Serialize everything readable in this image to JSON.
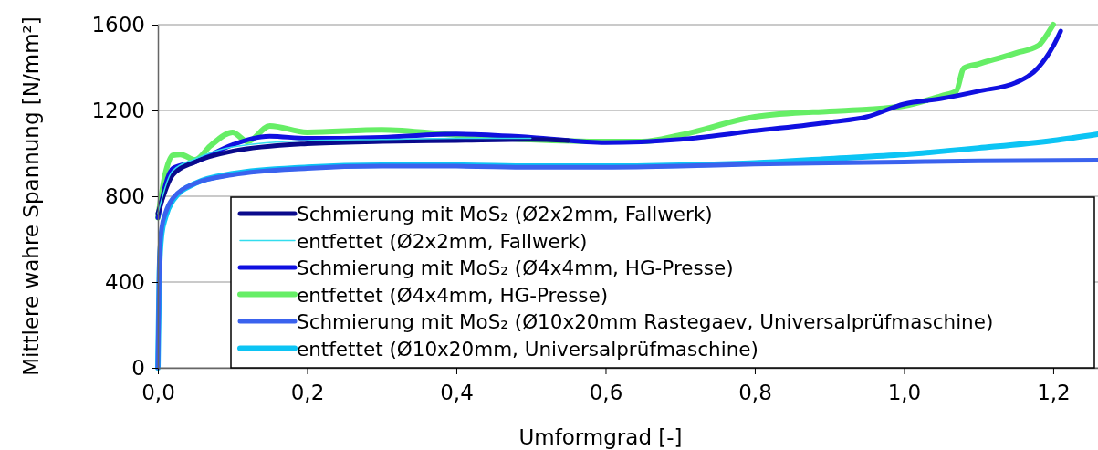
{
  "chart_data": {
    "type": "line",
    "xlabel": "Umformgrad [-]",
    "ylabel": "Mittlere wahre Spannung [N/mm²]",
    "xlim": [
      0,
      1.26
    ],
    "ylim": [
      0,
      1600
    ],
    "xticks": [
      {
        "value": 0,
        "label": "0,0"
      },
      {
        "value": 0.2,
        "label": "0,2"
      },
      {
        "value": 0.4,
        "label": "0,4"
      },
      {
        "value": 0.6,
        "label": "0,6"
      },
      {
        "value": 0.8,
        "label": "0,8"
      },
      {
        "value": 1.0,
        "label": "1,0"
      },
      {
        "value": 1.2,
        "label": "1,2"
      }
    ],
    "yticks": [
      0,
      400,
      800,
      1200,
      1600
    ],
    "grid": "y",
    "legend": "bottom right",
    "marker": "none",
    "line_style": "solid",
    "series": [
      {
        "name": "Schmierung mit MoS₂ (Ø2x2mm, Fallwerk)",
        "color": "#0a0a8c",
        "x": [
          0,
          0.02,
          0.05,
          0.1,
          0.2,
          0.3,
          0.4,
          0.5,
          0.55
        ],
        "values": [
          720,
          900,
          960,
          1010,
          1045,
          1055,
          1060,
          1065,
          1060
        ]
      },
      {
        "name": "entfettet (Ø2x2mm, Fallwerk)",
        "color": "#33ddee",
        "x": [
          0,
          0.02,
          0.05,
          0.1,
          0.2,
          0.3,
          0.4,
          0.5
        ],
        "values": [
          720,
          920,
          975,
          1030,
          1060,
          1065,
          1070,
          1070
        ]
      },
      {
        "name": "Schmierung mit MoS₂ (Ø4x4mm, HG-Presse)",
        "color": "#1010e0",
        "x": [
          0,
          0.02,
          0.05,
          0.1,
          0.15,
          0.2,
          0.3,
          0.4,
          0.5,
          0.6,
          0.7,
          0.8,
          0.9,
          0.95,
          1.0,
          1.05,
          1.1,
          1.15,
          1.18,
          1.2,
          1.21
        ],
        "values": [
          700,
          930,
          960,
          1040,
          1080,
          1070,
          1075,
          1090,
          1075,
          1050,
          1065,
          1105,
          1145,
          1170,
          1230,
          1255,
          1290,
          1330,
          1400,
          1500,
          1570
        ]
      },
      {
        "name": "entfettet (Ø4x4mm, HG-Presse)",
        "color": "#66ee66",
        "x": [
          0,
          0.01,
          0.02,
          0.03,
          0.05,
          0.07,
          0.1,
          0.12,
          0.15,
          0.2,
          0.3,
          0.4,
          0.5,
          0.6,
          0.65,
          0.7,
          0.8,
          0.9,
          0.95,
          1.0,
          1.05,
          1.07,
          1.08,
          1.1,
          1.15,
          1.18,
          1.19,
          1.2
        ],
        "values": [
          700,
          906,
          991,
          995,
          970,
          1034,
          1098,
          1055,
          1128,
          1098,
          1110,
          1085,
          1064,
          1055,
          1055,
          1085,
          1170,
          1196,
          1204,
          1221,
          1268,
          1290,
          1396,
          1417,
          1468,
          1502,
          1545,
          1600
        ]
      },
      {
        "name": "Schmierung mit MoS₂ (Ø10x20mm Rastegaev, Universalprüfmaschine)",
        "color": "#3a62ee",
        "x": [
          0,
          0.002,
          0.005,
          0.01,
          0.02,
          0.05,
          0.1,
          0.2,
          0.3,
          0.4,
          0.5,
          0.6,
          0.7,
          0.8,
          0.9,
          1.0,
          1.1,
          1.26
        ],
        "values": [
          0,
          500,
          650,
          720,
          790,
          860,
          900,
          930,
          940,
          940,
          935,
          935,
          940,
          950,
          955,
          960,
          965,
          968
        ]
      },
      {
        "name": "entfettet (Ø10x20mm, Universalprüfmaschine)",
        "color": "#0cc4f4",
        "x": [
          0,
          0.002,
          0.005,
          0.01,
          0.02,
          0.05,
          0.1,
          0.2,
          0.3,
          0.4,
          0.5,
          0.6,
          0.7,
          0.8,
          0.9,
          1.0,
          1.1,
          1.2,
          1.26
        ],
        "values": [
          0,
          450,
          620,
          700,
          780,
          860,
          905,
          935,
          945,
          945,
          940,
          940,
          945,
          955,
          975,
          995,
          1025,
          1060,
          1090
        ]
      }
    ]
  }
}
